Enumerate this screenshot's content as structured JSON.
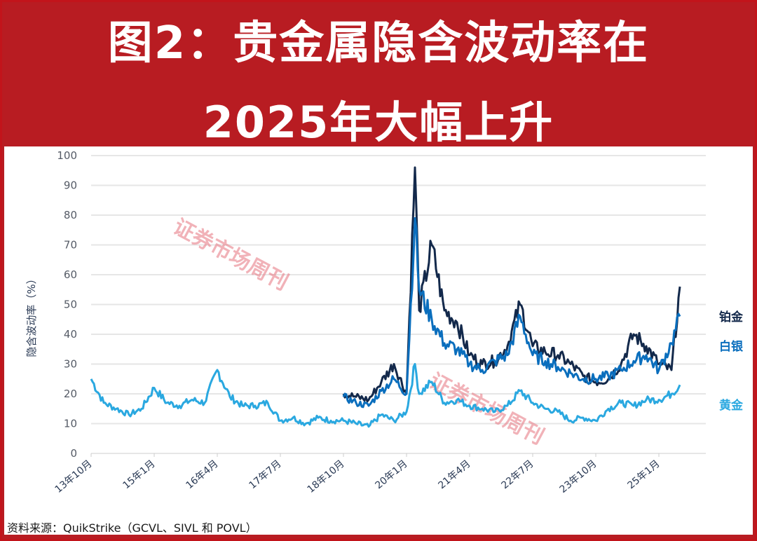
{
  "title": {
    "line1": "图2：贵金属隐含波动率在",
    "line2": "2025年大幅上升"
  },
  "source": "资料来源：QuikStrike（GCVL、SIVL 和 POVL）",
  "watermark": "证券市场周刊",
  "colors": {
    "banner": "#b81c22",
    "platinum": "#13294b",
    "silver": "#0a6ebd",
    "gold": "#2aa8e0",
    "gridline": "#e6e6e6",
    "watermark": "#e8808a"
  },
  "chart_data": {
    "type": "line",
    "title": "图2：贵金属隐含波动率在2025年大幅上升",
    "xlabel": "",
    "ylabel": "隐含波动率（%）",
    "ylim": [
      0,
      100
    ],
    "yticks": [
      0,
      10,
      20,
      30,
      40,
      50,
      60,
      70,
      80,
      90,
      100
    ],
    "xticks": [
      "13年10月",
      "15年1月",
      "16年4月",
      "17年7月",
      "18年10月",
      "20年1月",
      "21年4月",
      "22年7月",
      "23年10月",
      "25年1月"
    ],
    "grid": true,
    "legend_position": "right (inline labels)",
    "x": [
      "13-10",
      "14-01",
      "14-04",
      "14-07",
      "14-10",
      "15-01",
      "15-04",
      "15-07",
      "15-10",
      "16-01",
      "16-04",
      "16-07",
      "16-10",
      "17-01",
      "17-04",
      "17-07",
      "17-10",
      "18-01",
      "18-04",
      "18-07",
      "18-10",
      "19-01",
      "19-04",
      "19-07",
      "19-10",
      "20-01",
      "20-03",
      "20-04",
      "20-07",
      "20-10",
      "21-01",
      "21-04",
      "21-07",
      "21-10",
      "22-01",
      "22-04",
      "22-07",
      "22-10",
      "23-01",
      "23-04",
      "23-07",
      "23-10",
      "24-01",
      "24-04",
      "24-07",
      "24-10",
      "25-01",
      "25-04",
      "25-06"
    ],
    "series": [
      {
        "name": "铂金",
        "color": "#13294b",
        "values": [
          null,
          null,
          null,
          null,
          null,
          null,
          null,
          null,
          null,
          null,
          null,
          null,
          null,
          null,
          null,
          null,
          null,
          null,
          null,
          null,
          20,
          19,
          18,
          24,
          30,
          20,
          96,
          48,
          70,
          48,
          44,
          33,
          30,
          31,
          36,
          50,
          36,
          34,
          33,
          30,
          26,
          24,
          25,
          30,
          40,
          36,
          30,
          28,
          56
        ]
      },
      {
        "name": "白银",
        "color": "#0a6ebd",
        "values": [
          null,
          null,
          null,
          null,
          null,
          null,
          null,
          null,
          null,
          null,
          null,
          null,
          null,
          null,
          null,
          null,
          null,
          null,
          null,
          null,
          19,
          17,
          16,
          21,
          25,
          20,
          79,
          55,
          45,
          37,
          35,
          30,
          28,
          31,
          33,
          46,
          33,
          31,
          29,
          27,
          25,
          25,
          26,
          28,
          31,
          33,
          28,
          37,
          46
        ]
      },
      {
        "name": "黄金",
        "color": "#2aa8e0",
        "values": [
          25,
          17,
          15,
          13,
          15,
          22,
          17,
          16,
          18,
          17,
          28,
          19,
          16,
          16,
          17,
          11,
          12,
          10,
          12,
          11,
          11,
          10,
          9,
          13,
          11,
          14,
          30,
          20,
          24,
          17,
          18,
          16,
          15,
          14,
          16,
          21,
          17,
          15,
          14,
          11,
          12,
          11,
          15,
          17,
          16,
          18,
          18,
          20,
          23
        ]
      }
    ]
  },
  "legend": {
    "platinum": "铂金",
    "silver": "白银",
    "gold": "黄金"
  }
}
